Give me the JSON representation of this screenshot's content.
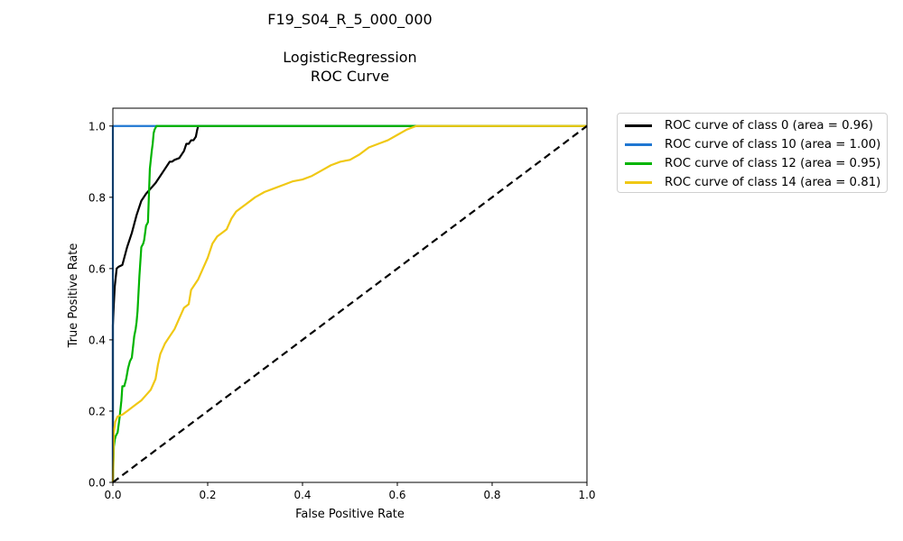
{
  "figure": {
    "suptitle": "F19_S04_R_5_000_000",
    "title_line1": "LogisticRegression",
    "title_line2": "ROC Curve"
  },
  "chart_data": {
    "type": "line",
    "title": "LogisticRegression\nROC Curve",
    "xlabel": "False Positive Rate",
    "ylabel": "True Positive Rate",
    "xlim": [
      0,
      1.0
    ],
    "ylim": [
      0,
      1.05
    ],
    "xticks": [
      "0.0",
      "0.2",
      "0.4",
      "0.6",
      "0.8",
      "1.0"
    ],
    "yticks": [
      "0.0",
      "0.2",
      "0.4",
      "0.6",
      "0.8",
      "1.0"
    ],
    "grid": false,
    "legend_position": "outside-right-top",
    "series": [
      {
        "name": "ROC curve of class 0 (area = 0.96)",
        "color": "#000000",
        "x": [
          0,
          0,
          0.002,
          0.004,
          0.008,
          0.012,
          0.02,
          0.024,
          0.03,
          0.04,
          0.05,
          0.06,
          0.07,
          0.08,
          0.09,
          0.1,
          0.11,
          0.12,
          0.125,
          0.13,
          0.14,
          0.15,
          0.155,
          0.16,
          0.165,
          0.17,
          0.175,
          0.178,
          0.18,
          0.2,
          0.3,
          0.5,
          0.7,
          0.9,
          1.0
        ],
        "y": [
          0,
          0.44,
          0.5,
          0.55,
          0.6,
          0.605,
          0.61,
          0.63,
          0.66,
          0.7,
          0.75,
          0.79,
          0.81,
          0.825,
          0.84,
          0.86,
          0.88,
          0.9,
          0.9,
          0.905,
          0.91,
          0.93,
          0.95,
          0.95,
          0.96,
          0.96,
          0.97,
          0.99,
          1.0,
          1.0,
          1.0,
          1.0,
          1.0,
          1.0,
          1.0
        ]
      },
      {
        "name": "ROC curve of class 10 (area = 1.00)",
        "color": "#1f77d2",
        "x": [
          0,
          0,
          0.05,
          0.2,
          0.5,
          1.0
        ],
        "y": [
          0,
          1.0,
          1.0,
          1.0,
          1.0,
          1.0
        ]
      },
      {
        "name": "ROC curve of class 12 (area = 0.95)",
        "color": "#00b400",
        "x": [
          0,
          0.002,
          0.004,
          0.006,
          0.01,
          0.014,
          0.018,
          0.02,
          0.024,
          0.028,
          0.032,
          0.036,
          0.04,
          0.045,
          0.048,
          0.05,
          0.052,
          0.056,
          0.06,
          0.064,
          0.066,
          0.07,
          0.074,
          0.078,
          0.082,
          0.084,
          0.086,
          0.088,
          0.09,
          0.092,
          0.095,
          0.1,
          0.2,
          0.4,
          0.6,
          0.65,
          0.8,
          1.0
        ],
        "y": [
          0,
          0.1,
          0.12,
          0.13,
          0.14,
          0.18,
          0.23,
          0.27,
          0.27,
          0.29,
          0.32,
          0.34,
          0.35,
          0.41,
          0.43,
          0.45,
          0.48,
          0.58,
          0.66,
          0.67,
          0.68,
          0.72,
          0.73,
          0.88,
          0.93,
          0.95,
          0.98,
          0.99,
          0.995,
          1.0,
          1.0,
          1.0,
          1.0,
          1.0,
          1.0,
          1.0,
          1.0,
          1.0
        ]
      },
      {
        "name": "ROC curve of class 14 (area = 0.81)",
        "color": "#f0c814",
        "x": [
          0,
          0.002,
          0.005,
          0.01,
          0.02,
          0.03,
          0.04,
          0.05,
          0.06,
          0.07,
          0.08,
          0.09,
          0.095,
          0.1,
          0.11,
          0.12,
          0.13,
          0.14,
          0.15,
          0.16,
          0.165,
          0.17,
          0.18,
          0.19,
          0.2,
          0.21,
          0.215,
          0.22,
          0.23,
          0.24,
          0.25,
          0.26,
          0.27,
          0.28,
          0.3,
          0.32,
          0.34,
          0.36,
          0.38,
          0.4,
          0.42,
          0.44,
          0.46,
          0.48,
          0.5,
          0.52,
          0.54,
          0.56,
          0.58,
          0.6,
          0.62,
          0.64,
          0.7,
          0.8,
          0.9,
          1.0
        ],
        "y": [
          0,
          0.14,
          0.17,
          0.185,
          0.19,
          0.2,
          0.21,
          0.22,
          0.23,
          0.245,
          0.26,
          0.29,
          0.33,
          0.36,
          0.39,
          0.41,
          0.43,
          0.46,
          0.49,
          0.5,
          0.54,
          0.55,
          0.57,
          0.6,
          0.63,
          0.67,
          0.68,
          0.69,
          0.7,
          0.71,
          0.74,
          0.76,
          0.77,
          0.78,
          0.8,
          0.815,
          0.825,
          0.835,
          0.845,
          0.85,
          0.86,
          0.875,
          0.89,
          0.9,
          0.905,
          0.92,
          0.94,
          0.95,
          0.96,
          0.975,
          0.99,
          1.0,
          1.0,
          1.0,
          1.0,
          1.0
        ]
      }
    ],
    "reference_line": {
      "x": [
        0,
        1
      ],
      "y": [
        0,
        1
      ],
      "color": "#000000",
      "style": "dashed"
    }
  }
}
